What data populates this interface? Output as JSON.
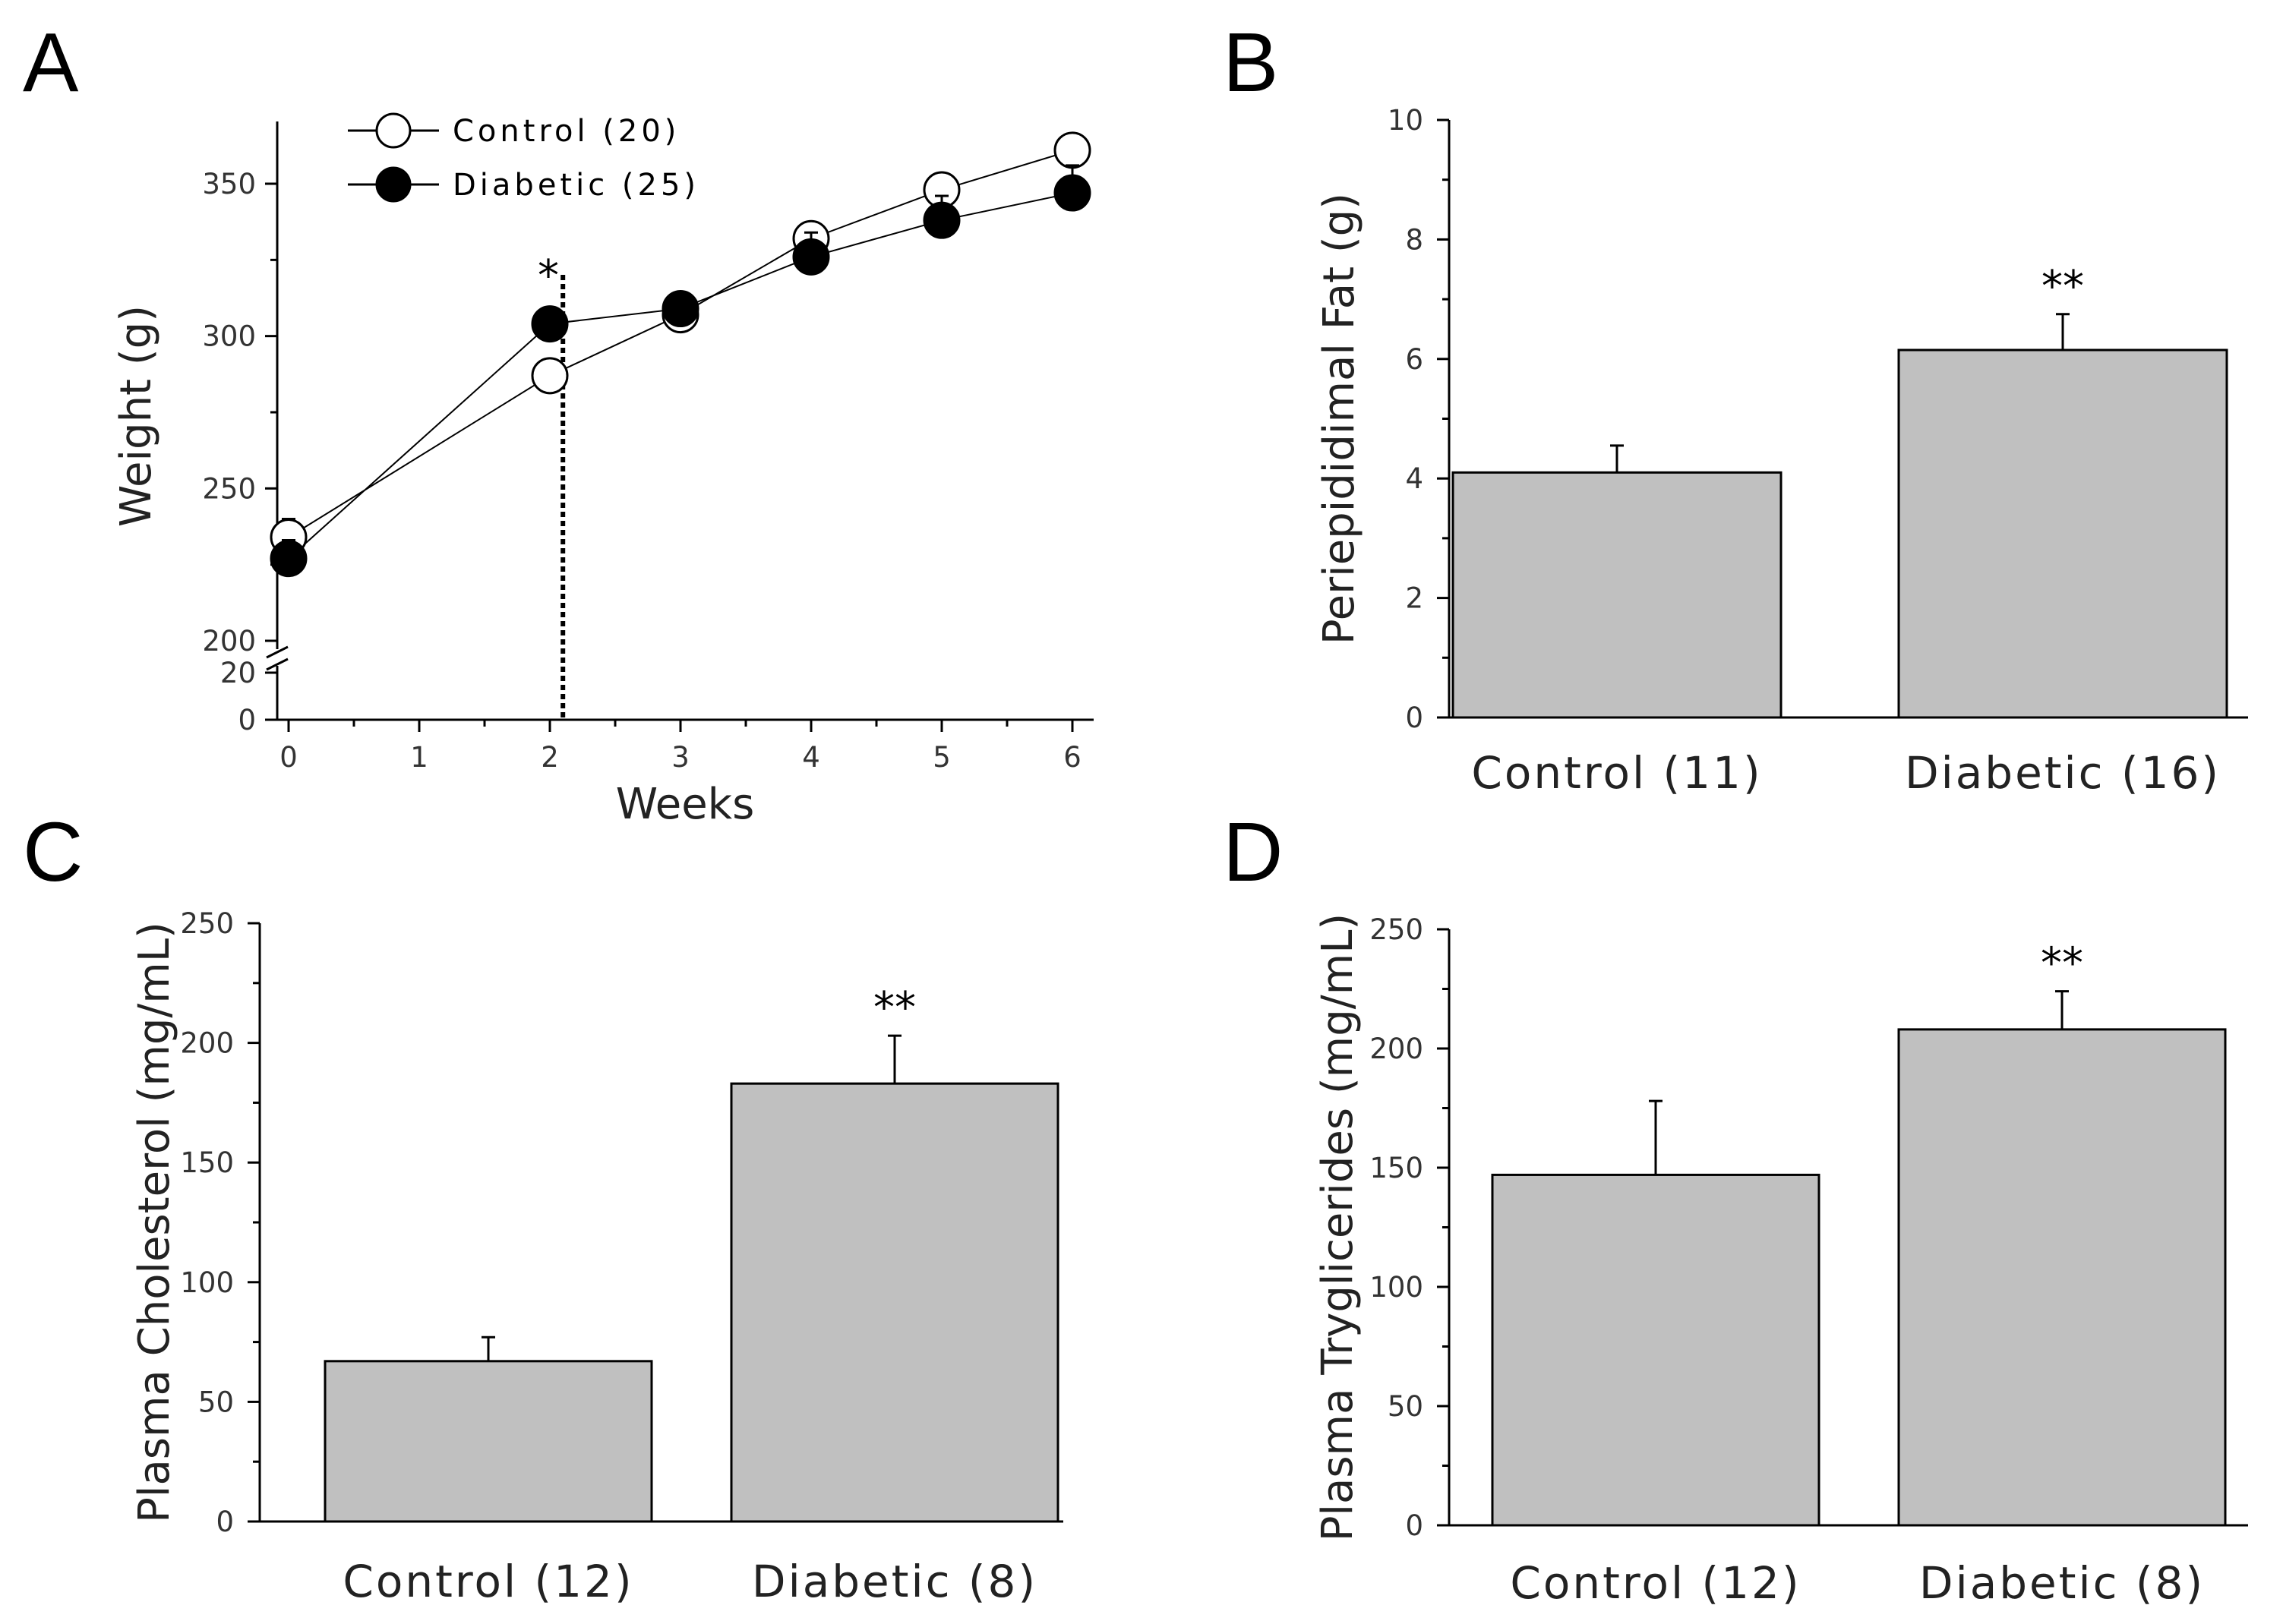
{
  "panels": [
    {
      "letter": "A"
    },
    {
      "letter": "B"
    },
    {
      "letter": "C"
    },
    {
      "letter": "D"
    }
  ],
  "chart_data": [
    {
      "panel": "A",
      "type": "line",
      "xlabel": "Weeks",
      "ylabel": "Weight (g)",
      "x_ticks": [
        "0",
        "1",
        "2",
        "3",
        "4",
        "5",
        "6"
      ],
      "y_ticks": [
        "0",
        "20",
        "200",
        "250",
        "300",
        "350"
      ],
      "broken_axis": true,
      "x": [
        0,
        2,
        3,
        4,
        5,
        6
      ],
      "series": [
        {
          "name": "Control (20)",
          "marker": "open-circle",
          "values": [
            234,
            287,
            307,
            332,
            348,
            361
          ],
          "errors": [
            6,
            4,
            4,
            4,
            4,
            4
          ]
        },
        {
          "name": "Diabetic (25)",
          "marker": "filled-circle",
          "values": [
            227,
            304,
            309,
            326,
            338,
            347
          ],
          "errors": [
            6,
            4,
            4,
            8,
            8,
            9
          ]
        }
      ],
      "annotations": [
        {
          "x": 2,
          "text": "*"
        }
      ],
      "vertical_line_x": 2.1,
      "legend_position": "top-left"
    },
    {
      "panel": "B",
      "type": "bar",
      "categories": [
        "Control (11)",
        "Diabetic (16)"
      ],
      "values": [
        4.1,
        6.15
      ],
      "errors": [
        0.45,
        0.6
      ],
      "ylabel": "Periepididimal Fat (g)",
      "ylim": [
        0,
        10
      ],
      "y_ticks": [
        "0",
        "2",
        "4",
        "6",
        "8",
        "10"
      ],
      "annotations": [
        {
          "category": "Diabetic (16)",
          "text": "**"
        }
      ]
    },
    {
      "panel": "C",
      "type": "bar",
      "categories": [
        "Control (12)",
        "Diabetic (8)"
      ],
      "values": [
        67,
        183
      ],
      "errors": [
        10,
        20
      ],
      "ylabel": "Plasma Cholesterol (mg/mL)",
      "ylim": [
        0,
        250
      ],
      "y_ticks": [
        "0",
        "50",
        "100",
        "150",
        "200",
        "250"
      ],
      "annotations": [
        {
          "category": "Diabetic (8)",
          "text": "**"
        }
      ]
    },
    {
      "panel": "D",
      "type": "bar",
      "categories": [
        "Control (12)",
        "Diabetic (8)"
      ],
      "values": [
        147,
        208
      ],
      "errors": [
        31,
        16
      ],
      "ylabel": "Plasma Tryglicerides (mg/mL)",
      "ylim": [
        0,
        250
      ],
      "y_ticks": [
        "0",
        "50",
        "100",
        "150",
        "200",
        "250"
      ],
      "annotations": [
        {
          "category": "Diabetic (8)",
          "text": "**"
        }
      ]
    }
  ]
}
